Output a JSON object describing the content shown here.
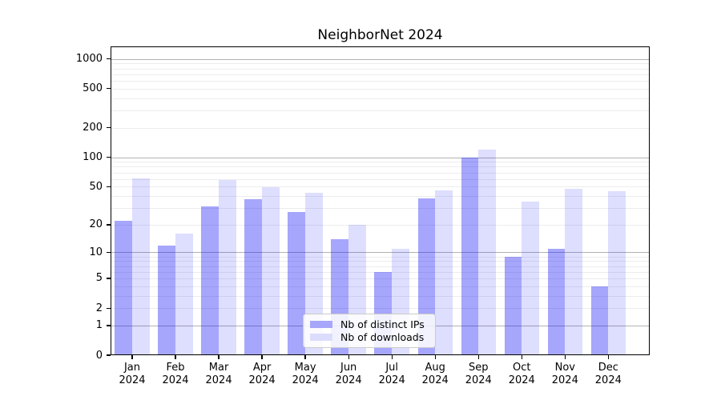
{
  "chart_data": {
    "type": "bar",
    "title": "NeighborNet 2024",
    "categories": [
      "Jan",
      "Feb",
      "Mar",
      "Apr",
      "May",
      "Jun",
      "Jul",
      "Aug",
      "Sep",
      "Oct",
      "Nov",
      "Dec"
    ],
    "year_label": "2024",
    "series": [
      {
        "name": "Nb of distinct IPs",
        "color": "#a6a6fa",
        "fill": "rgba(0,0,245,0.35)",
        "values": [
          22,
          12,
          31,
          37,
          27,
          14,
          6,
          38,
          100,
          9,
          11,
          4
        ]
      },
      {
        "name": "Nb of downloads",
        "color": "#dcdcfd",
        "fill": "rgba(0,0,245,0.13)",
        "values": [
          61,
          16,
          58,
          49,
          43,
          20,
          11,
          46,
          120,
          35,
          47,
          45
        ]
      }
    ],
    "y_ticks": [
      0,
      1,
      2,
      5,
      10,
      20,
      50,
      100,
      200,
      500,
      1000
    ],
    "y_scale": "log1p",
    "ylim": [
      0,
      1340
    ],
    "xlabel": "",
    "ylabel": "",
    "grid": "horizontal",
    "grid_major_at": [
      1,
      10,
      100,
      1000
    ],
    "legend": {
      "position": "lower center",
      "entries": [
        "Nb of distinct IPs",
        "Nb of downloads"
      ]
    }
  }
}
